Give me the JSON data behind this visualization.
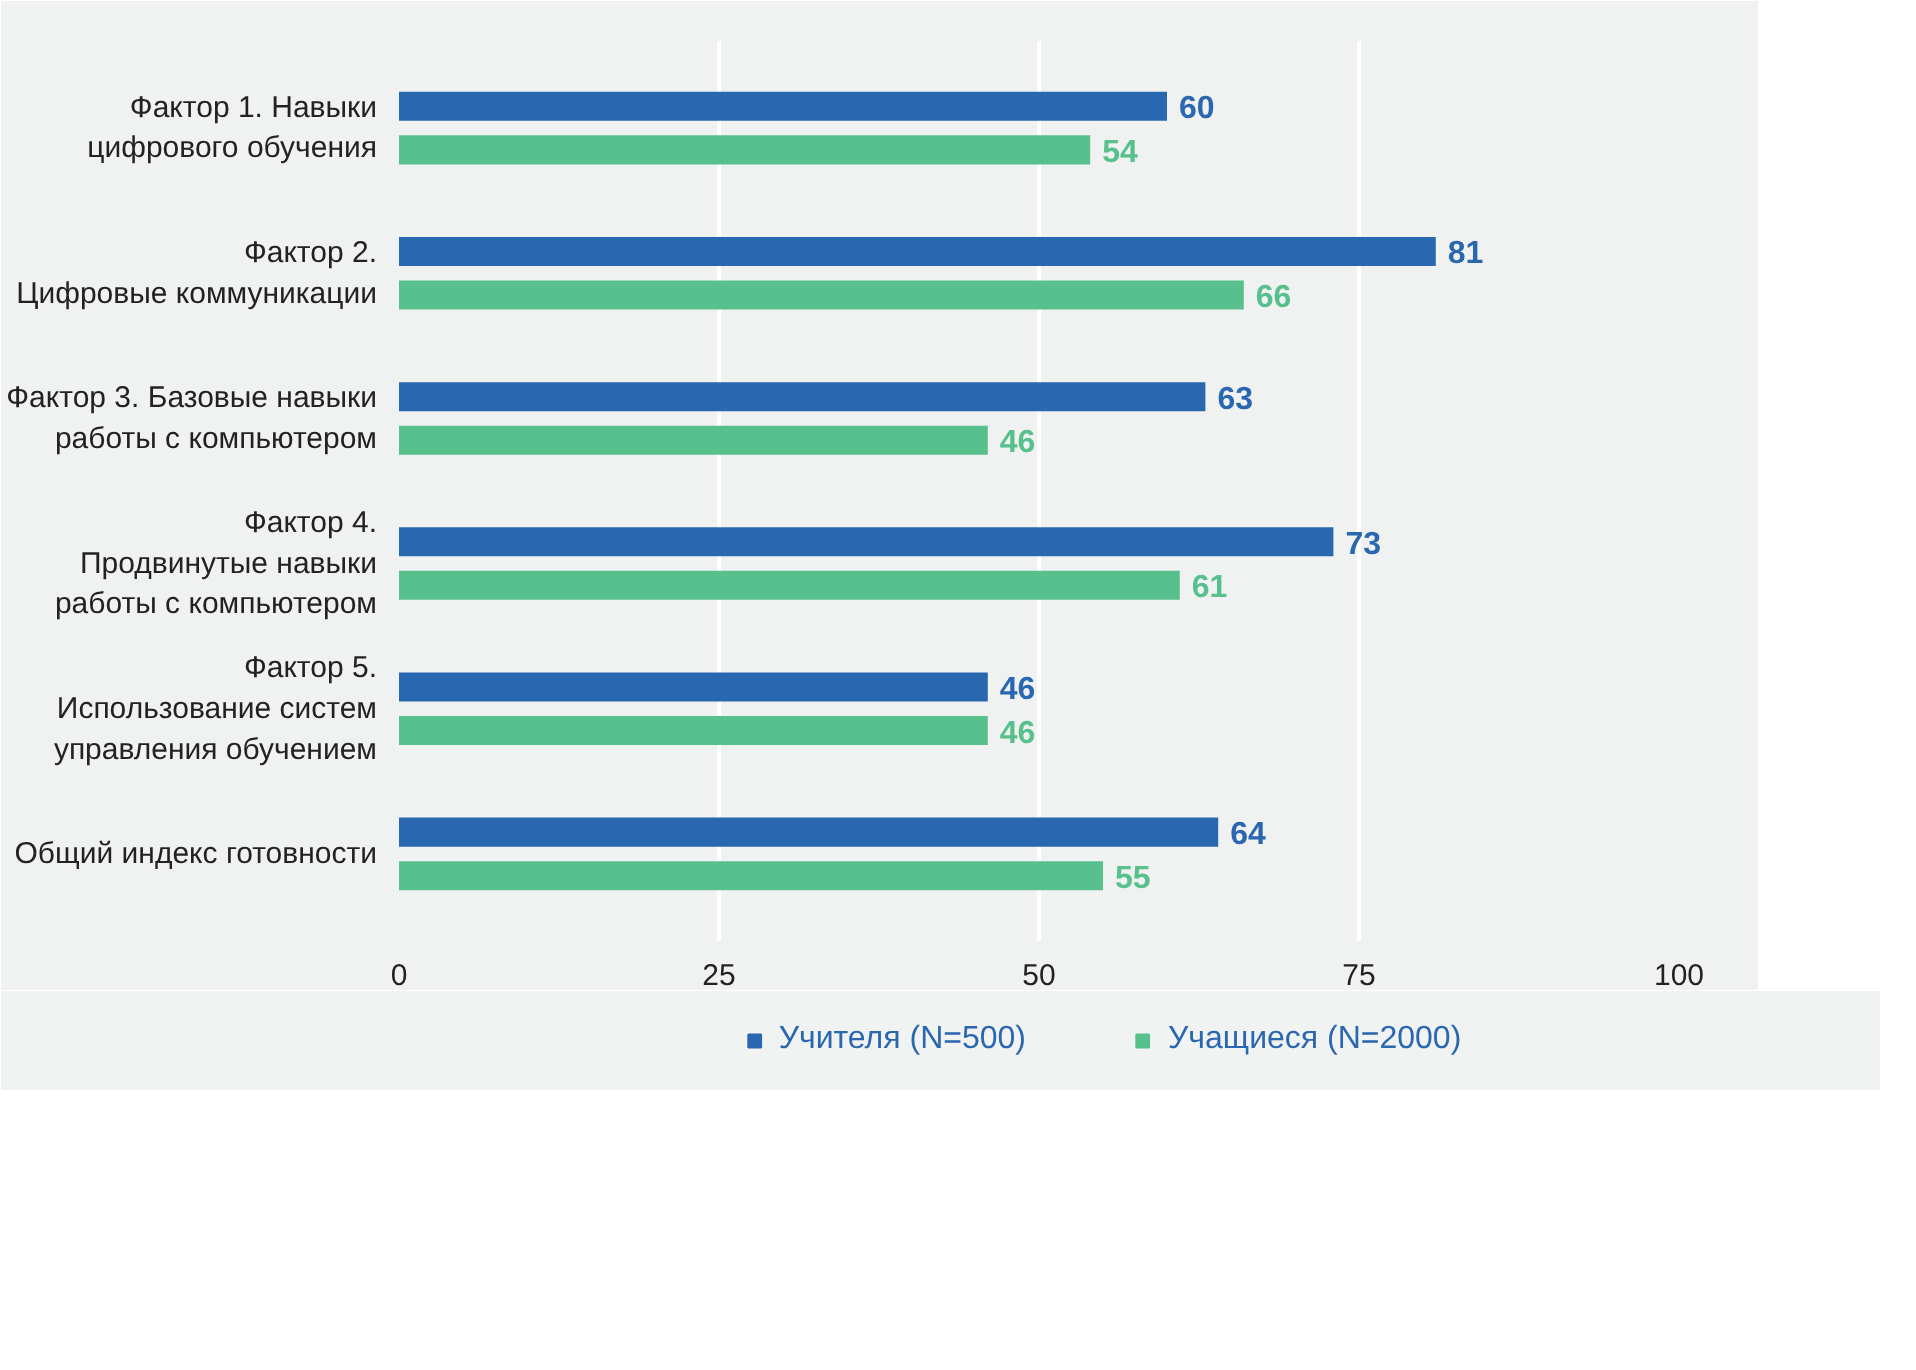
{
  "chart_data": {
    "type": "bar",
    "orientation": "horizontal",
    "categories": [
      "Фактор 1. Навыки\nцифрового обучения",
      "Фактор 2.\nЦифровые коммуникации",
      "Фактор 3. Базовые навыки\nработы с компьютером",
      "Фактор 4.\nПродвинутые навыки\nработы с компьютером",
      "Фактор 5.\nИспользование систем\nуправления обучением",
      "Общий индекс готовности"
    ],
    "series": [
      {
        "name": "Учителя (N=500)",
        "color": "#2a67b1",
        "values": [
          60,
          81,
          63,
          73,
          46,
          64
        ]
      },
      {
        "name": "Учащиеся (N=2000)",
        "color": "#57c08c",
        "values": [
          54,
          66,
          46,
          61,
          46,
          55
        ]
      }
    ],
    "xlim": [
      0,
      100
    ],
    "xticks": [
      0,
      25,
      50,
      75,
      100
    ],
    "grid": "x",
    "legend": "bottom",
    "data_labels": true
  }
}
